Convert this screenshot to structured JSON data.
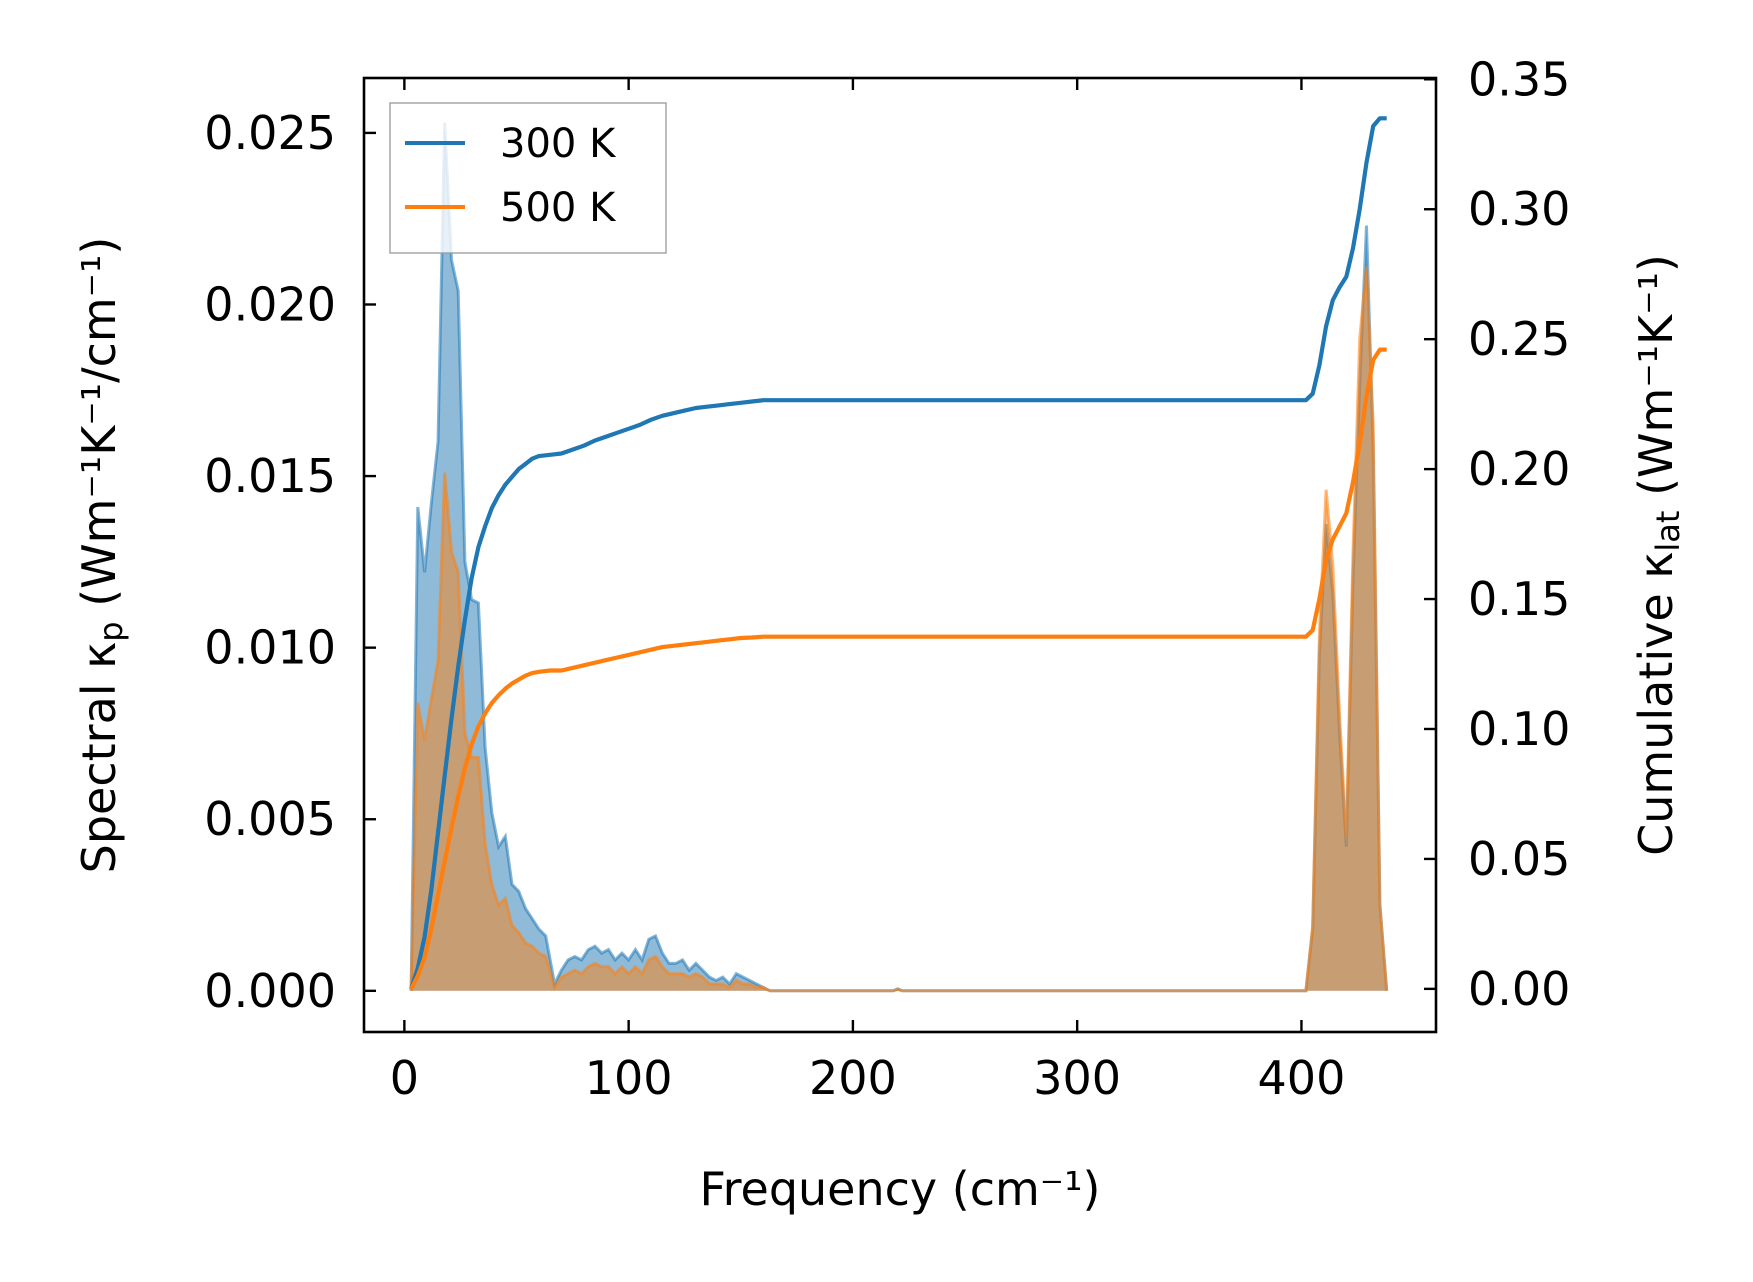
{
  "chart_data": {
    "type": "area",
    "xlabel": "Frequency (cm⁻¹)",
    "ylabel_left": {
      "prefix": "Spectral κ",
      "sub": "p",
      "suffix": " (Wm⁻¹K⁻¹/cm⁻¹)"
    },
    "ylabel_right": {
      "prefix": "Cumulative κ",
      "sub": "lat",
      "suffix": " (Wm⁻¹K⁻¹)"
    },
    "xlim": [
      -18,
      460
    ],
    "ylim_left": [
      -0.0012,
      0.0266
    ],
    "ylim_right": [
      -0.0166,
      0.3505
    ],
    "x_ticks": [
      0,
      100,
      200,
      300,
      400
    ],
    "x_tick_labels": [
      "0",
      "100",
      "200",
      "300",
      "400"
    ],
    "y_left_ticks": [
      0.0,
      0.005,
      0.01,
      0.015,
      0.02,
      0.025
    ],
    "y_left_tick_labels": [
      "0.000",
      "0.005",
      "0.010",
      "0.015",
      "0.020",
      "0.025"
    ],
    "y_right_ticks": [
      0.0,
      0.05,
      0.1,
      0.15,
      0.2,
      0.25,
      0.3,
      0.35
    ],
    "y_right_tick_labels": [
      "0.00",
      "0.05",
      "0.10",
      "0.15",
      "0.20",
      "0.25",
      "0.30",
      "0.35"
    ],
    "legend": {
      "position": "top-left",
      "entries": [
        {
          "label": "300 K",
          "color": "#1f77b4"
        },
        {
          "label": "500 K",
          "color": "#ff7f0e"
        }
      ]
    },
    "series": [
      {
        "name": "300 K",
        "color": "#1f77b4",
        "spectral": [
          [
            3,
            0
          ],
          [
            6,
            0.0141
          ],
          [
            9,
            0.0122
          ],
          [
            12,
            0.0142
          ],
          [
            15,
            0.016
          ],
          [
            18,
            0.0253
          ],
          [
            21,
            0.0213
          ],
          [
            24,
            0.0204
          ],
          [
            27,
            0.0125
          ],
          [
            30,
            0.0114
          ],
          [
            33,
            0.0113
          ],
          [
            36,
            0.0071
          ],
          [
            39,
            0.0052
          ],
          [
            42,
            0.0042
          ],
          [
            45,
            0.0045
          ],
          [
            48,
            0.0031
          ],
          [
            51,
            0.0029
          ],
          [
            54,
            0.0024
          ],
          [
            57,
            0.0021
          ],
          [
            60,
            0.0018
          ],
          [
            63,
            0.0016
          ],
          [
            67,
            0.0002
          ],
          [
            70,
            0.0006
          ],
          [
            73,
            0.0009
          ],
          [
            76,
            0.001
          ],
          [
            79,
            0.0009
          ],
          [
            82,
            0.0012
          ],
          [
            85,
            0.0013
          ],
          [
            88,
            0.0011
          ],
          [
            91,
            0.0012
          ],
          [
            94,
            0.0009
          ],
          [
            97,
            0.0011
          ],
          [
            100,
            0.0009
          ],
          [
            103,
            0.0012
          ],
          [
            106,
            0.0009
          ],
          [
            109,
            0.0015
          ],
          [
            112,
            0.0016
          ],
          [
            115,
            0.0011
          ],
          [
            118,
            0.0008
          ],
          [
            121,
            0.0008
          ],
          [
            124,
            0.0009
          ],
          [
            127,
            0.0006
          ],
          [
            130,
            0.0008
          ],
          [
            133,
            0.0006
          ],
          [
            136,
            0.0004
          ],
          [
            139,
            0.0003
          ],
          [
            142,
            0.0004
          ],
          [
            145,
            0.0002
          ],
          [
            148,
            0.0005
          ],
          [
            151,
            0.0004
          ],
          [
            154,
            0.0003
          ],
          [
            157,
            0.0002
          ],
          [
            160,
            0.0001
          ],
          [
            163,
            0
          ],
          [
            218,
            0
          ],
          [
            220,
            6e-05
          ],
          [
            222,
            0
          ],
          [
            402,
            0
          ],
          [
            405,
            0.0018
          ],
          [
            408,
            0.0098
          ],
          [
            411,
            0.0136
          ],
          [
            414,
            0.0116
          ],
          [
            417,
            0.0075
          ],
          [
            420,
            0.0042
          ],
          [
            423,
            0.012
          ],
          [
            426,
            0.0177
          ],
          [
            429,
            0.0223
          ],
          [
            432,
            0.0158
          ],
          [
            435,
            0.0025
          ],
          [
            438,
            0
          ]
        ],
        "cumulative": [
          [
            3,
            0
          ],
          [
            6,
            0.008
          ],
          [
            9,
            0.02
          ],
          [
            12,
            0.038
          ],
          [
            15,
            0.06
          ],
          [
            18,
            0.082
          ],
          [
            21,
            0.104
          ],
          [
            24,
            0.124
          ],
          [
            27,
            0.142
          ],
          [
            30,
            0.158
          ],
          [
            33,
            0.17
          ],
          [
            36,
            0.178
          ],
          [
            39,
            0.185
          ],
          [
            42,
            0.19
          ],
          [
            45,
            0.194
          ],
          [
            48,
            0.197
          ],
          [
            51,
            0.2
          ],
          [
            54,
            0.202
          ],
          [
            57,
            0.204
          ],
          [
            60,
            0.205
          ],
          [
            65,
            0.2055
          ],
          [
            70,
            0.206
          ],
          [
            75,
            0.2075
          ],
          [
            80,
            0.209
          ],
          [
            85,
            0.211
          ],
          [
            90,
            0.2125
          ],
          [
            95,
            0.214
          ],
          [
            100,
            0.2155
          ],
          [
            105,
            0.217
          ],
          [
            110,
            0.219
          ],
          [
            115,
            0.2205
          ],
          [
            120,
            0.2215
          ],
          [
            125,
            0.2225
          ],
          [
            130,
            0.2235
          ],
          [
            135,
            0.224
          ],
          [
            140,
            0.2245
          ],
          [
            145,
            0.225
          ],
          [
            150,
            0.2255
          ],
          [
            155,
            0.226
          ],
          [
            160,
            0.2265
          ],
          [
            170,
            0.2265
          ],
          [
            220,
            0.2265
          ],
          [
            402,
            0.2265
          ],
          [
            405,
            0.229
          ],
          [
            408,
            0.24
          ],
          [
            411,
            0.255
          ],
          [
            414,
            0.265
          ],
          [
            417,
            0.27
          ],
          [
            420,
            0.274
          ],
          [
            423,
            0.285
          ],
          [
            426,
            0.3
          ],
          [
            429,
            0.318
          ],
          [
            432,
            0.332
          ],
          [
            435,
            0.335
          ],
          [
            438,
            0.335
          ]
        ]
      },
      {
        "name": "500 K",
        "color": "#ff7f0e",
        "spectral": [
          [
            3,
            0
          ],
          [
            6,
            0.0084
          ],
          [
            9,
            0.0073
          ],
          [
            12,
            0.0085
          ],
          [
            15,
            0.0096
          ],
          [
            18,
            0.0151
          ],
          [
            21,
            0.0128
          ],
          [
            24,
            0.0122
          ],
          [
            27,
            0.0075
          ],
          [
            30,
            0.0068
          ],
          [
            33,
            0.0068
          ],
          [
            36,
            0.0043
          ],
          [
            39,
            0.0031
          ],
          [
            42,
            0.0025
          ],
          [
            45,
            0.0027
          ],
          [
            48,
            0.0019
          ],
          [
            51,
            0.0017
          ],
          [
            54,
            0.0014
          ],
          [
            57,
            0.0013
          ],
          [
            60,
            0.0011
          ],
          [
            63,
            0.001
          ],
          [
            67,
            0.0001
          ],
          [
            70,
            0.0004
          ],
          [
            73,
            0.0005
          ],
          [
            76,
            0.0006
          ],
          [
            79,
            0.0005
          ],
          [
            82,
            0.0007
          ],
          [
            85,
            0.0008
          ],
          [
            88,
            0.0007
          ],
          [
            91,
            0.0007
          ],
          [
            94,
            0.0005
          ],
          [
            97,
            0.0007
          ],
          [
            100,
            0.0005
          ],
          [
            103,
            0.0007
          ],
          [
            106,
            0.0005
          ],
          [
            109,
            0.0009
          ],
          [
            112,
            0.001
          ],
          [
            115,
            0.0007
          ],
          [
            118,
            0.0005
          ],
          [
            121,
            0.0005
          ],
          [
            124,
            0.0005
          ],
          [
            127,
            0.0004
          ],
          [
            130,
            0.0005
          ],
          [
            133,
            0.0004
          ],
          [
            136,
            0.0002
          ],
          [
            139,
            0.0002
          ],
          [
            142,
            0.0002
          ],
          [
            145,
            0.0001
          ],
          [
            148,
            0.0003
          ],
          [
            151,
            0.0002
          ],
          [
            154,
            0.0002
          ],
          [
            157,
            0.0001
          ],
          [
            160,
            0.0001
          ],
          [
            163,
            0
          ],
          [
            218,
            0
          ],
          [
            220,
            4e-05
          ],
          [
            222,
            0
          ],
          [
            402,
            0
          ],
          [
            405,
            0.0019
          ],
          [
            408,
            0.0104
          ],
          [
            411,
            0.0146
          ],
          [
            414,
            0.0124
          ],
          [
            417,
            0.008
          ],
          [
            420,
            0.0045
          ],
          [
            423,
            0.0128
          ],
          [
            426,
            0.019
          ],
          [
            429,
            0.0211
          ],
          [
            432,
            0.0165
          ],
          [
            435,
            0.0025
          ],
          [
            438,
            0
          ]
        ],
        "cumulative": [
          [
            3,
            0
          ],
          [
            6,
            0.005
          ],
          [
            9,
            0.012
          ],
          [
            12,
            0.023
          ],
          [
            15,
            0.036
          ],
          [
            18,
            0.049
          ],
          [
            21,
            0.062
          ],
          [
            24,
            0.074
          ],
          [
            27,
            0.085
          ],
          [
            30,
            0.094
          ],
          [
            33,
            0.101
          ],
          [
            36,
            0.106
          ],
          [
            39,
            0.11
          ],
          [
            42,
            0.113
          ],
          [
            45,
            0.1155
          ],
          [
            48,
            0.1175
          ],
          [
            51,
            0.119
          ],
          [
            54,
            0.1205
          ],
          [
            57,
            0.1215
          ],
          [
            60,
            0.122
          ],
          [
            65,
            0.1225
          ],
          [
            70,
            0.1225
          ],
          [
            75,
            0.1235
          ],
          [
            80,
            0.1245
          ],
          [
            85,
            0.1255
          ],
          [
            90,
            0.1265
          ],
          [
            95,
            0.1275
          ],
          [
            100,
            0.1285
          ],
          [
            105,
            0.1295
          ],
          [
            110,
            0.1305
          ],
          [
            115,
            0.1315
          ],
          [
            120,
            0.132
          ],
          [
            125,
            0.1325
          ],
          [
            130,
            0.133
          ],
          [
            135,
            0.1335
          ],
          [
            140,
            0.134
          ],
          [
            145,
            0.1345
          ],
          [
            150,
            0.135
          ],
          [
            155,
            0.1352
          ],
          [
            160,
            0.1355
          ],
          [
            170,
            0.1355
          ],
          [
            220,
            0.1355
          ],
          [
            402,
            0.1355
          ],
          [
            405,
            0.138
          ],
          [
            408,
            0.15
          ],
          [
            411,
            0.165
          ],
          [
            414,
            0.173
          ],
          [
            417,
            0.178
          ],
          [
            420,
            0.183
          ],
          [
            423,
            0.195
          ],
          [
            426,
            0.21
          ],
          [
            429,
            0.228
          ],
          [
            432,
            0.242
          ],
          [
            435,
            0.246
          ],
          [
            438,
            0.246
          ]
        ]
      }
    ]
  }
}
